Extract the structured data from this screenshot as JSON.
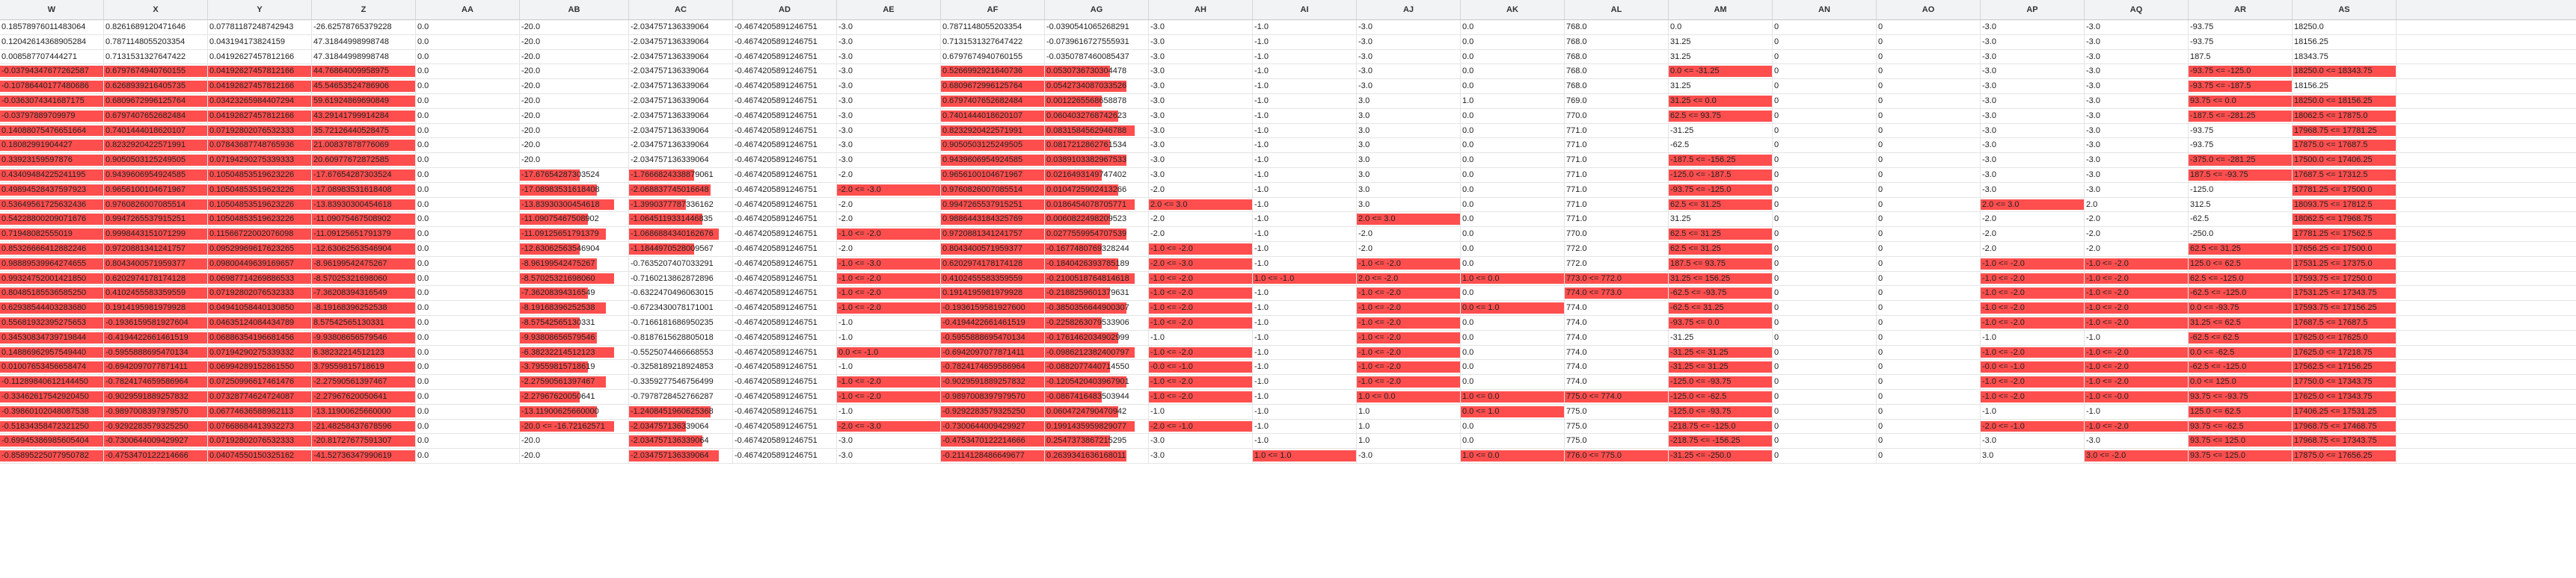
{
  "accent": "#ff4e4e",
  "columns": [
    "W",
    "X",
    "Y",
    "Z",
    "AA",
    "AB",
    "AC",
    "AD",
    "AE",
    "AF",
    "AG",
    "AH",
    "AI",
    "AJ",
    "AK",
    "AL",
    "AM",
    "AN",
    "AO",
    "AP",
    "AQ",
    "AR",
    "AS"
  ],
  "rows": [
    [
      "0.18578976011483064",
      "0.8261689120471646",
      "0.07781187248742943",
      "-26.62578765379228",
      "0.0",
      "-20.0",
      "-2.034757136339064",
      "-0.4674205891246751",
      "-3.0",
      "0.7871148055203354",
      "-0.0390541065268291",
      "-3.0",
      "-1.0",
      "-3.0",
      "0.0",
      "768.0",
      "0.0",
      "0",
      "0",
      "-3.0",
      "-3.0",
      "-93.75",
      "18250.0"
    ],
    [
      "0.12042614368905284",
      "0.7871148055203354",
      "0.043194173824159",
      "47.31844998998748",
      "0.0",
      "-20.0",
      "-2.034757136339064",
      "-0.4674205891246751",
      "-3.0",
      "0.7131531327647422",
      "-0.0739616727555931",
      "-3.0",
      "-1.0",
      "-3.0",
      "0.0",
      "768.0",
      "31.25",
      "0",
      "0",
      "-3.0",
      "-3.0",
      "-93.75",
      "18156.25"
    ],
    [
      "0.008587707444271",
      "0.7131531327647422",
      "0.04192627457812166",
      "47.31844998998748",
      "0.0",
      "-20.0",
      "-2.034757136339064",
      "-0.4674205891246751",
      "-3.0",
      "0.6797674940760155",
      "-0.0350787460085437",
      "-3.0",
      "-1.0",
      "-3.0",
      "0.0",
      "768.0",
      "31.25",
      "0",
      "0",
      "-3.0",
      "-3.0",
      "187.5",
      "18343.75"
    ],
    [
      "-0.03794347677262587",
      "0.6797674940760155",
      "0.04192627457812166",
      "44.76864009958975",
      "0.0",
      "-20.0",
      "-2.034757136339064",
      "-0.4674205891246751",
      "-3.0",
      "0.5266992921640736",
      "0.0530736730304478",
      "-3.0",
      "-1.0",
      "-3.0",
      "0.0",
      "768.0",
      "0.0 <= -31.25",
      "0",
      "0",
      "-3.0",
      "-3.0",
      "-93.75 <= -125.0",
      "18250.0 <= 18343.75"
    ],
    [
      "-0.10786440177480686",
      "0.6268939216405735",
      "0.04192627457812166",
      "45.54653524786906",
      "0.0",
      "-20.0",
      "-2.034757136339064",
      "-0.4674205891246751",
      "-3.0",
      "0.6809672996125764",
      "0.0542734087033526",
      "-3.0",
      "-1.0",
      "-3.0",
      "0.0",
      "768.0",
      "31.25",
      "0",
      "0",
      "-3.0",
      "-3.0",
      "-93.75 <= -187.5",
      "18156.25"
    ],
    [
      "-0.0363074341687175",
      "0.6809672996125764",
      "0.03423265984407294",
      "59.61924869690849",
      "0.0",
      "-20.0",
      "-2.034757136339064",
      "-0.4674205891246751",
      "-3.0",
      "0.6797407652682484",
      "0.0012265568658878",
      "-3.0",
      "-1.0",
      "3.0",
      "1.0",
      "769.0",
      "31.25 <= 0.0",
      "0",
      "0",
      "-3.0",
      "-3.0",
      "93.75 <= 0.0",
      "18250.0 <= 18156.25"
    ],
    [
      "-0.03797889709979",
      "0.6797407652682484",
      "0.04192627457812166",
      "43.29141799914284",
      "0.0",
      "-20.0",
      "-2.034757136339064",
      "-0.4674205891246751",
      "-3.0",
      "0.7401444018620107",
      "0.0604032768742623",
      "-3.0",
      "-1.0",
      "3.0",
      "0.0",
      "770.0",
      "62.5 <= 93.75",
      "0",
      "0",
      "-3.0",
      "-3.0",
      "-187.5 <= -281.25",
      "18062.5 <= 17875.0"
    ],
    [
      "0.14088075476651664",
      "0.7401444018620107",
      "0.07192802076532333",
      "35.72126440528475",
      "0.0",
      "-20.0",
      "-2.034757136339064",
      "-0.4674205891246751",
      "-3.0",
      "0.8232920422571991",
      "0.0831584562946788",
      "-3.0",
      "-1.0",
      "3.0",
      "0.0",
      "771.0",
      "-31.25",
      "0",
      "0",
      "-3.0",
      "-3.0",
      "-93.75",
      "17968.75 <= 17781.25"
    ],
    [
      "0.18082991904427",
      "0.8232920422571991",
      "0.07843687748765936",
      "21.00837878776069",
      "0.0",
      "-20.0",
      "-2.034757136339064",
      "-0.4674205891246751",
      "-3.0",
      "0.9050503125249505",
      "0.0817212862761534",
      "-3.0",
      "-1.0",
      "3.0",
      "0.0",
      "771.0",
      "-62.5",
      "0",
      "0",
      "-3.0",
      "-3.0",
      "-93.75",
      "17875.0 <= 17687.5"
    ],
    [
      "0.33923159597876",
      "0.9050503125249505",
      "0.07194290275339333",
      "20.60977672872585",
      "0.0",
      "-20.0",
      "-2.034757136339064",
      "-0.4674205891246751",
      "-3.0",
      "0.9439606954924585",
      "0.0389103382967533",
      "-3.0",
      "-1.0",
      "3.0",
      "0.0",
      "771.0",
      "-187.5 <= -156.25",
      "0",
      "0",
      "-3.0",
      "-3.0",
      "-375.0 <= -281.25",
      "17500.0 <= 17406.25"
    ],
    [
      "0.43409484225241195",
      "0.9439606954924585",
      "0.10504853519623226",
      "-17.67654287303524",
      "0.0",
      "-17.67654287303524",
      "-1.7666824338879061",
      "-0.4674205891246751",
      "-2.0",
      "0.9656100104671967",
      "0.0216493149747402",
      "-3.0",
      "-1.0",
      "3.0",
      "0.0",
      "771.0",
      "-125.0 <= -187.5",
      "0",
      "0",
      "-3.0",
      "-3.0",
      "187.5 <= -93.75",
      "17687.5 <= 17312.5"
    ],
    [
      "0.49894528437597923",
      "0.9656100104671967",
      "0.10504853519623226",
      "-17.08983531618408",
      "0.0",
      "-17.08983531618408",
      "-2.068837745016648",
      "-0.4674205891246751",
      "-2.0 <= -3.0",
      "0.9760826007085514",
      "0.0104725902413266",
      "-2.0",
      "-1.0",
      "3.0",
      "0.0",
      "771.0",
      "-93.75 <= -125.0",
      "0",
      "0",
      "-3.0",
      "-3.0",
      "-125.0",
      "17781.25 <= 17500.0"
    ],
    [
      "0.53649561725632436",
      "0.9760826007085514",
      "0.10504853519623226",
      "-13.83930300454618",
      "0.0",
      "-13.83930300454618",
      "-1.3990377787336162",
      "-0.4674205891246751",
      "-2.0",
      "0.9947265537915251",
      "0.0186454078705771",
      "2.0 <= 3.0",
      "-1.0",
      "3.0",
      "0.0",
      "771.0",
      "62.5 <= 31.25",
      "0",
      "0",
      "2.0 <= 3.0",
      "2.0",
      "312.5",
      "18093.75 <= 17812.5"
    ],
    [
      "0.54228800209071676",
      "0.9947265537915251",
      "0.10504853519623226",
      "-11.09075467508902",
      "0.0",
      "-11.09075467508902",
      "-1.0645119331446835",
      "-0.4674205891246751",
      "-2.0",
      "0.9886443184325769",
      "0.0060822498209523",
      "-2.0",
      "-1.0",
      "2.0 <= 3.0",
      "0.0",
      "771.0",
      "31.25",
      "0",
      "0",
      "-2.0",
      "-2.0",
      "-62.5",
      "18062.5 <= 17968.75"
    ],
    [
      "0.71948082555019",
      "0.9998443151071299",
      "0.11566722002076098",
      "-11.09125651791379",
      "0.0",
      "-11.09125651791379",
      "-1.0686884340162676",
      "-0.4674205891246751",
      "-1.0 <= -2.0",
      "0.9720881341241757",
      "0.0277559954707539",
      "-2.0",
      "-1.0",
      "-2.0",
      "0.0",
      "770.0",
      "62.5 <= 31.25",
      "0",
      "0",
      "-2.0",
      "-2.0",
      "-250.0",
      "17781.25 <= 17562.5"
    ],
    [
      "0.85326666412882246",
      "0.9720881341241757",
      "0.09529969617623265",
      "-12.63062563546904",
      "0.0",
      "-12.63062563546904",
      "-1.1844970528009567",
      "-0.4674205891246751",
      "-2.0",
      "0.8043400571959377",
      "-0.1677480769328244",
      "-1.0 <= -2.0",
      "-1.0",
      "-2.0",
      "0.0",
      "772.0",
      "62.5 <= 31.25",
      "0",
      "0",
      "-2.0",
      "-2.0",
      "62.5 <= 31.25",
      "17656.25 <= 17500.0"
    ],
    [
      "0.98889539964274655",
      "0.8043400571959377",
      "0.09800449639169657",
      "-8.96199542475267",
      "0.0",
      "-8.96199542475267",
      "-0.7635207407033291",
      "-0.4674205891246751",
      "-1.0 <= -3.0",
      "0.6202974178174128",
      "-0.1840426393785189",
      "-2.0 <= -3.0",
      "-1.0",
      "-1.0 <= -2.0",
      "0.0",
      "772.0",
      "187.5 <= 93.75",
      "0",
      "0",
      "-1.0 <= -2.0",
      "-1.0 <= -2.0",
      "125.0 <= 62.5",
      "17531.25 <= 17375.0"
    ],
    [
      "0.99324752001421850",
      "0.6202974178174128",
      "0.06987714269886533",
      "-8.57025321698060",
      "0.0",
      "-8.57025321698060",
      "-0.7160213862872896",
      "-0.4674205891246751",
      "-1.0 <= -2.0",
      "0.4102455583359559",
      "-0.2100518764814618",
      "-1.0 <= -2.0",
      "1.0 <= -1.0",
      "2.0 <= -2.0",
      "1.0 <= 0.0",
      "773.0 <= 772.0",
      "31.25 <= 156.25",
      "0",
      "0",
      "-1.0 <= -2.0",
      "-1.0 <= -2.0",
      "62.5 <= -125.0",
      "17593.75 <= 17250.0"
    ],
    [
      "0.80485185536585250",
      "0.4102455583359559",
      "0.07192802076532333",
      "-7.36208394316549",
      "0.0",
      "-7.36208394316549",
      "-0.6322470496063015",
      "-0.4674205891246751",
      "-1.0 <= -2.0",
      "0.1914195981979928",
      "-0.2188259601379631",
      "-1.0 <= -2.0",
      "-1.0",
      "-1.0 <= -2.0",
      "0.0",
      "774.0 <= 773.0",
      "-62.5 <= -93.75",
      "0",
      "0",
      "-1.0 <= -2.0",
      "-1.0 <= -2.0",
      "-62.5 <= -125.0",
      "17531.25 <= 17343.75"
    ],
    [
      "0.62938544403283680",
      "0.1914195981979928",
      "0.04941058440130850",
      "-8.19168396252538",
      "0.0",
      "-8.19168396252538",
      "-0.6723430078171001",
      "-0.4674205891246751",
      "-1.0 <= -2.0",
      "-0.1936159581927600",
      "-0.3850356644900307",
      "-1.0 <= -2.0",
      "-1.0",
      "-1.0 <= -2.0",
      "0.0 <= 1.0",
      "774.0",
      "-62.5 <= 31.25",
      "0",
      "0",
      "-1.0 <= -2.0",
      "-1.0 <= -2.0",
      "0.0 <= -93.75",
      "17593.75 <= 17156.25"
    ],
    [
      "0.55681932395275653",
      "-0.1936159581927604",
      "0.04635124084434789",
      "8.57542565130331",
      "0.0",
      "-8.57542565130331",
      "-0.7166181686950235",
      "-0.4674205891246751",
      "-1.0",
      "-0.4194422661461519",
      "-0.2258263079533906",
      "-1.0 <= -2.0",
      "-1.0",
      "-1.0 <= -2.0",
      "0.0",
      "774.0",
      "-93.75 <= 0.0",
      "0",
      "0",
      "-1.0 <= -2.0",
      "-1.0 <= -2.0",
      "31.25 <= 62.5",
      "17687.5 <= 17687.5"
    ],
    [
      "0.34530834739719844",
      "-0.4194422661461519",
      "0.06886354196681456",
      "-9.93808656579546",
      "0.0",
      "-9.93808656579546",
      "-0.8187615628805018",
      "-0.4674205891246751",
      "-1.0",
      "-0.5955888695470134",
      "-0.1761462034902999",
      "-1.0",
      "-1.0",
      "-1.0 <= -2.0",
      "0.0",
      "774.0",
      "-31.25",
      "0",
      "0",
      "-1.0",
      "-1.0",
      "-62.5 <= 62.5",
      "17625.0 <= 17625.0"
    ],
    [
      "0.14886962957549440",
      "-0.5955888695470134",
      "0.07194290275339332",
      "6.38232214512123",
      "0.0",
      "-6.38232214512123",
      "-0.5525074466668553",
      "-0.4674205891246751",
      "0.0 <= -1.0",
      "-0.6942097077871411",
      "-0.0986212382400797",
      "-1.0 <= -2.0",
      "-1.0",
      "-1.0 <= -2.0",
      "0.0",
      "774.0",
      "-31.25 <= 31.25",
      "0",
      "0",
      "-1.0 <= -2.0",
      "-1.0 <= -2.0",
      "0.0 <= -62.5",
      "17625.0 <= 17218.75"
    ],
    [
      "0.01007653456658474",
      "-0.6942097077871411",
      "0.06994289152861550",
      "3.79559815718619",
      "0.0",
      "-3.79559815718619",
      "-0.3258189218924853",
      "-0.4674205891246751",
      "-1.0",
      "-0.7824174659586964",
      "-0.0882077440714550",
      "-0.0 <= -1.0",
      "-1.0",
      "-1.0 <= -2.0",
      "0.0",
      "774.0",
      "-31.25 <= 31.25",
      "0",
      "0",
      "-0.0 <= -1.0",
      "-1.0 <= -2.0",
      "-62.5 <= -125.0",
      "17562.5 <= 17156.25"
    ],
    [
      "-0.11289840612144450",
      "-0.7824174659586964",
      "0.07250996617461476",
      "-2.27590561397467",
      "0.0",
      "-2.27590561397467",
      "-0.3359277546756499",
      "-0.4674205891246751",
      "-1.0 <= -2.0",
      "-0.9029591889257832",
      "-0.1205420403967901",
      "-1.0 <= -2.0",
      "-1.0",
      "-1.0 <= -2.0",
      "0.0",
      "774.0",
      "-125.0 <= -93.75",
      "0",
      "0",
      "-1.0 <= -2.0",
      "-1.0 <= -2.0",
      "0.0 <= 125.0",
      "17750.0 <= 17343.75"
    ],
    [
      "-0.33462617542920450",
      "-0.9029591889257832",
      "0.07328774624724087",
      "-2.27967620050641",
      "0.0",
      "-2.27967620050641",
      "-0.7978728452766287",
      "-0.4674205891246751",
      "-1.0 <= -2.0",
      "-0.9897008397979570",
      "-0.0867416483503944",
      "-1.0 <= -2.0",
      "-1.0",
      "1.0 <= 0.0",
      "1.0 <= 0.0",
      "775.0 <= 774.0",
      "-125.0 <= -62.5",
      "0",
      "0",
      "-1.0 <= -2.0",
      "-1.0 <= -0.0",
      "93.75 <= -93.75",
      "17625.0 <= 17343.75"
    ],
    [
      "-0.39860102048087538",
      "-0.9897008397979570",
      "0.06774636588962113",
      "-13.11900625660000",
      "0.0",
      "-13.11900625660000",
      "-1.2408451960625368",
      "-0.4674205891246751",
      "-1.0",
      "-0.9292283579325250",
      "0.0604724790470942",
      "-1.0",
      "-1.0",
      "1.0",
      "0.0 <= 1.0",
      "775.0",
      "-125.0 <= -93.75",
      "0",
      "0",
      "-1.0",
      "-1.0",
      "125.0 <= 62.5",
      "17406.25 <= 17531.25"
    ],
    [
      "-0.51834358472321250",
      "-0.9292283579325250",
      "0.07668684413932273",
      "-21.48258437678596",
      "0.0",
      "-20.0 <= -16.72162571",
      "-2.034757136339064",
      "-0.4674205891246751",
      "-2.0 <= -3.0",
      "-0.7300644009429927",
      "0.1991435959829077",
      "-2.0 <= -1.0",
      "-1.0",
      "1.0",
      "0.0",
      "775.0",
      "-218.75 <= -125.0",
      "0",
      "0",
      "-2.0 <= -1.0",
      "-1.0 <= -2.0",
      "93.75 <= -62.5",
      "17968.75 <= 17468.75"
    ],
    [
      "-0.69945386985605404",
      "-0.7300644009429927",
      "0.07192802076532333",
      "-20.81727677591307",
      "0.0",
      "-20.0",
      "-2.034757136339064",
      "-0.4674205891246751",
      "-3.0",
      "-0.4753470122214666",
      "0.2547373867215295",
      "-3.0",
      "-1.0",
      "1.0",
      "0.0",
      "775.0",
      "-218.75 <= -156.25",
      "0",
      "0",
      "-3.0",
      "-3.0",
      "93.75 <= 125.0",
      "17968.75 <= 17343.75"
    ],
    [
      "-0.85895225077950782",
      "-0.4753470122214666",
      "0.04074550150325162",
      "-41.52736347990619",
      "0.0",
      "-20.0",
      "-2.034757136339064",
      "-0.4674205891246751",
      "-3.0",
      "-0.2114128486649677",
      "0.2639341636168011",
      "-3.0",
      "1.0 <= 1.0",
      "-3.0",
      "1.0 <= 0.0",
      "776.0 <= 775.0",
      "-31.25 <= -250.0",
      "0",
      "0",
      "3.0",
      "3.0 <= -2.0",
      "93.75 <= 125.0",
      "17875.0 <= 17656.25"
    ]
  ]
}
